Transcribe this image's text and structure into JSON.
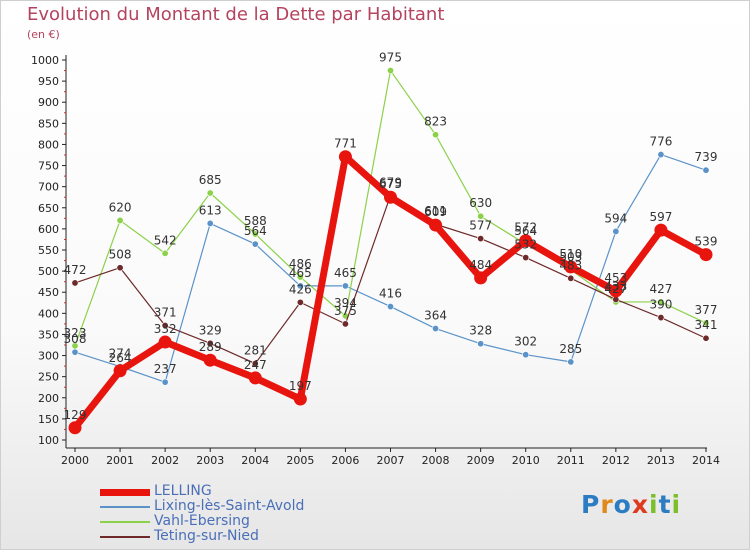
{
  "title": "Evolution du Montant de la Dette par Habitant",
  "subtitle": "(en €)",
  "logo_text": "Proxiti",
  "chart_data": {
    "type": "line",
    "title": "Evolution du Montant de la Dette par Habitant",
    "subtitle": "(en €)",
    "x": [
      "2000",
      "2001",
      "2002",
      "2003",
      "2004",
      "2005",
      "2006",
      "2007",
      "2008",
      "2009",
      "2010",
      "2011",
      "2012",
      "2013",
      "2014"
    ],
    "ylim": [
      100,
      1000
    ],
    "yticks": [
      100,
      150,
      200,
      250,
      300,
      350,
      400,
      450,
      500,
      550,
      600,
      650,
      700,
      750,
      800,
      850,
      900,
      950,
      1000
    ],
    "grid": false,
    "legend_position": "bottom-left",
    "series": [
      {
        "name": "LELLING",
        "color": "#e8150f",
        "values": [
          129,
          264,
          332,
          289,
          247,
          197,
          771,
          675,
          609,
          484,
          572,
          510,
          453,
          597,
          539
        ]
      },
      {
        "name": "Lixing-lès-Saint-Avold",
        "color": "#5b93c9",
        "values": [
          308,
          274,
          237,
          613,
          564,
          465,
          465,
          416,
          364,
          328,
          302,
          285,
          594,
          776,
          739
        ]
      },
      {
        "name": "Vahl-Ebersing",
        "color": "#8cd14a",
        "values": [
          323,
          620,
          542,
          685,
          588,
          486,
          394,
          975,
          823,
          630,
          564,
          503,
          427,
          427,
          377
        ]
      },
      {
        "name": "Teting-sur-Nied",
        "color": "#6e2a2a",
        "values": [
          472,
          508,
          371,
          329,
          281,
          426,
          375,
          679,
          611,
          577,
          532,
          483,
          433,
          390,
          341
        ]
      }
    ]
  }
}
